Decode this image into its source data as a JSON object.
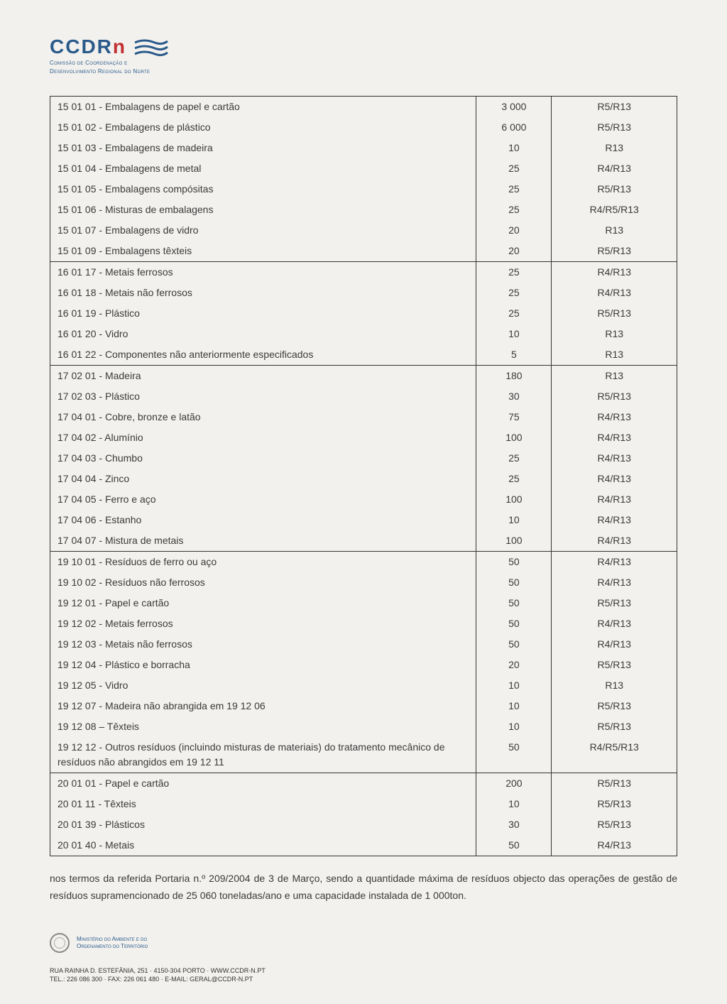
{
  "logo": {
    "main": "CCDR",
    "suffix": "n",
    "sub1": "Comissão de Coordenação e",
    "sub2": "Desenvolvimento Regional do Norte"
  },
  "sections": [
    {
      "rows": [
        {
          "desc": "15 01 01 - Embalagens de papel e cartão",
          "val": "3 000",
          "code": "R5/R13"
        },
        {
          "desc": "15 01 02 - Embalagens de plástico",
          "val": "6 000",
          "code": "R5/R13"
        },
        {
          "desc": "15 01 03 - Embalagens de madeira",
          "val": "10",
          "code": "R13"
        },
        {
          "desc": "15 01 04 - Embalagens de metal",
          "val": "25",
          "code": "R4/R13"
        },
        {
          "desc": "15 01 05 - Embalagens compósitas",
          "val": "25",
          "code": "R5/R13"
        },
        {
          "desc": "15 01 06 - Misturas de embalagens",
          "val": "25",
          "code": "R4/R5/R13"
        },
        {
          "desc": "15 01 07 - Embalagens de vidro",
          "val": "20",
          "code": "R13"
        },
        {
          "desc": "15 01 09 - Embalagens têxteis",
          "val": "20",
          "code": "R5/R13"
        }
      ]
    },
    {
      "rows": [
        {
          "desc": "16 01 17 - Metais ferrosos",
          "val": "25",
          "code": "R4/R13"
        },
        {
          "desc": "16 01 18 - Metais não ferrosos",
          "val": "25",
          "code": "R4/R13"
        },
        {
          "desc": "16 01 19 - Plástico",
          "val": "25",
          "code": "R5/R13"
        },
        {
          "desc": "16 01 20 - Vidro",
          "val": "10",
          "code": "R13"
        },
        {
          "desc": "16 01 22 - Componentes não anteriormente especificados",
          "val": "5",
          "code": "R13"
        }
      ]
    },
    {
      "rows": [
        {
          "desc": "17 02 01 - Madeira",
          "val": "180",
          "code": "R13"
        },
        {
          "desc": "17 02 03 - Plástico",
          "val": "30",
          "code": "R5/R13"
        },
        {
          "desc": "17 04 01 - Cobre, bronze e latão",
          "val": "75",
          "code": "R4/R13"
        },
        {
          "desc": "17 04 02 - Alumínio",
          "val": "100",
          "code": "R4/R13"
        },
        {
          "desc": "17 04 03 - Chumbo",
          "val": "25",
          "code": "R4/R13"
        },
        {
          "desc": "17 04 04 - Zinco",
          "val": "25",
          "code": "R4/R13"
        },
        {
          "desc": "17 04 05 - Ferro e aço",
          "val": "100",
          "code": "R4/R13"
        },
        {
          "desc": "17 04 06 - Estanho",
          "val": "10",
          "code": "R4/R13"
        },
        {
          "desc": "17 04 07 - Mistura de metais",
          "val": "100",
          "code": "R4/R13"
        }
      ]
    },
    {
      "rows": [
        {
          "desc": "19 10 01 - Resíduos de ferro ou aço",
          "val": "50",
          "code": "R4/R13"
        },
        {
          "desc": "19 10 02 - Resíduos não ferrosos",
          "val": "50",
          "code": "R4/R13"
        },
        {
          "desc": "19 12 01 - Papel e cartão",
          "val": "50",
          "code": "R5/R13"
        },
        {
          "desc": "19 12 02 - Metais ferrosos",
          "val": "50",
          "code": "R4/R13"
        },
        {
          "desc": "19 12 03 - Metais não ferrosos",
          "val": "50",
          "code": "R4/R13"
        },
        {
          "desc": "19 12 04 - Plástico e borracha",
          "val": "20",
          "code": "R5/R13"
        },
        {
          "desc": "19 12 05 - Vidro",
          "val": "10",
          "code": "R13"
        },
        {
          "desc": "19 12 07 - Madeira não abrangida em 19 12 06",
          "val": "10",
          "code": "R5/R13"
        },
        {
          "desc": "19 12 08 – Têxteis",
          "val": "10",
          "code": "R5/R13"
        },
        {
          "desc": "19 12 12 - Outros resíduos (incluindo misturas de materiais) do tratamento mecânico de resíduos não abrangidos em 19 12 11",
          "val": "50",
          "code": "R4/R5/R13"
        }
      ]
    },
    {
      "rows": [
        {
          "desc": "20 01 01 - Papel e cartão",
          "val": "200",
          "code": "R5/R13"
        },
        {
          "desc": "20 01 11 - Têxteis",
          "val": "10",
          "code": "R5/R13"
        },
        {
          "desc": "20 01 39 - Plásticos",
          "val": "30",
          "code": "R5/R13"
        },
        {
          "desc": "20 01 40 - Metais",
          "val": "50",
          "code": "R4/R13"
        }
      ]
    }
  ],
  "paragraph": "nos termos da referida Portaria n.º 209/2004 de 3 de Março, sendo a quantidade máxima de resíduos objecto das operações de gestão de resíduos supramencionado de 25 060 toneladas/ano e uma capacidade instalada de 1 000ton.",
  "footer": {
    "ministry1": "Ministério do Ambiente e do",
    "ministry2": "Ordenamento do Território",
    "address": "RUA RAINHA D. ESTEFÂNIA, 251 · 4150-304 PORTO · WWW.CCDR-N.PT",
    "contact": "TEL.: 226 086 300 · FAX: 226 061 480 · E-MAIL: GERAL@CCDR-N.PT"
  }
}
